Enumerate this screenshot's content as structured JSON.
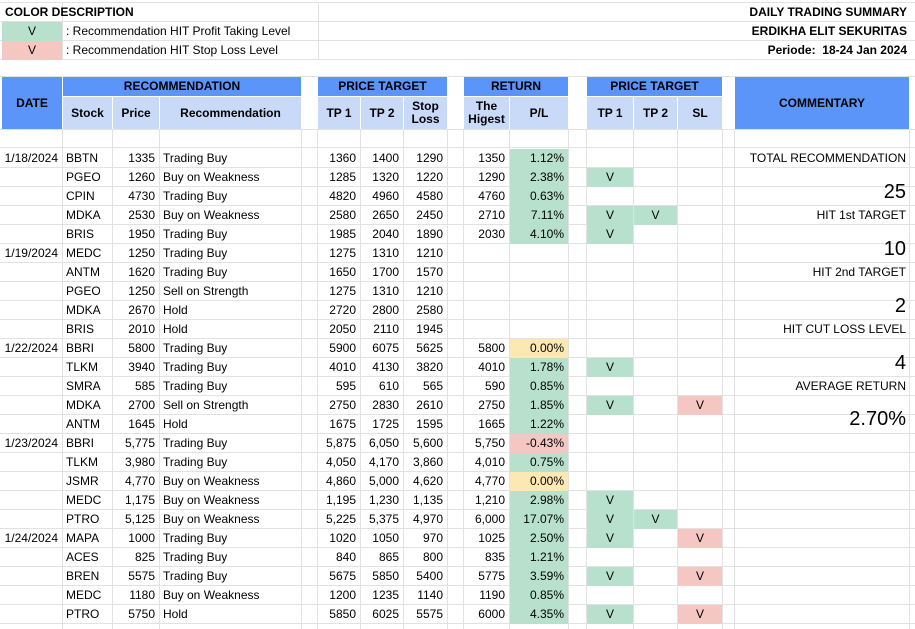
{
  "colors": {
    "header": "#5b95f9",
    "subheader": "#c9daf8",
    "hit_profit": "#b7e1cd",
    "hit_stop": "#f4c7c3",
    "neutral": "#fce8b2"
  },
  "legend": {
    "title": "COLOR DESCRIPTION",
    "profit_mark": "V",
    "profit_text": ": Recommendation HIT Profit Taking Level",
    "stop_mark": "V",
    "stop_text": ": Recommendation HIT Stop Loss Level"
  },
  "report": {
    "title": "DAILY TRADING SUMMARY",
    "company": "ERDIKHA ELIT SEKURITAS",
    "period_label": "Periode:",
    "period_value": "18-24 Jan 2024"
  },
  "headers": {
    "date": "DATE",
    "recommendation": "RECOMMENDATION",
    "stock": "Stock",
    "price": "Price",
    "rec": "Recommendation",
    "price_target": "PRICE TARGET",
    "tp1": "TP 1",
    "tp2": "TP 2",
    "stop_loss": "Stop Loss",
    "return": "RETURN",
    "highest": "The Higest",
    "pl": "P/L",
    "price_target2": "PRICE TARGET",
    "tp1b": "TP 1",
    "tp2b": "TP 2",
    "sl": "SL",
    "commentary": "COMMENTARY"
  },
  "commentary": {
    "total_label": "TOTAL RECOMMENDATION",
    "total_value": "25",
    "hit1_label": "HIT 1st TARGET",
    "hit1_value": "10",
    "hit2_label": "HIT 2nd TARGET",
    "hit2_value": "2",
    "cut_label": "HIT CUT LOSS LEVEL",
    "cut_value": "4",
    "avg_label": "AVERAGE RETURN",
    "avg_value": "2.70%"
  },
  "rows": [
    {
      "date": "1/18/2024",
      "stock": "BBTN",
      "price": "1335",
      "rec": "Trading Buy",
      "tp1": "1360",
      "tp2": "1400",
      "sl": "1290",
      "high": "1350",
      "pl": "1.12%",
      "plc": "green",
      "h1": "",
      "h2": "",
      "hs": ""
    },
    {
      "date": "",
      "stock": "PGEO",
      "price": "1260",
      "rec": "Buy on Weakness",
      "tp1": "1285",
      "tp2": "1320",
      "sl": "1220",
      "high": "1290",
      "pl": "2.38%",
      "plc": "green",
      "h1": "V",
      "h2": "",
      "hs": ""
    },
    {
      "date": "",
      "stock": "CPIN",
      "price": "4730",
      "rec": "Trading Buy",
      "tp1": "4820",
      "tp2": "4960",
      "sl": "4580",
      "high": "4760",
      "pl": "0.63%",
      "plc": "green",
      "h1": "",
      "h2": "",
      "hs": ""
    },
    {
      "date": "",
      "stock": "MDKA",
      "price": "2530",
      "rec": "Buy on Weakness",
      "tp1": "2580",
      "tp2": "2650",
      "sl": "2450",
      "high": "2710",
      "pl": "7.11%",
      "plc": "green",
      "h1": "V",
      "h2": "V",
      "hs": ""
    },
    {
      "date": "",
      "stock": "BRIS",
      "price": "1950",
      "rec": "Trading Buy",
      "tp1": "1985",
      "tp2": "2040",
      "sl": "1890",
      "high": "2030",
      "pl": "4.10%",
      "plc": "green",
      "h1": "V",
      "h2": "",
      "hs": ""
    },
    {
      "date": "1/19/2024",
      "stock": "MEDC",
      "price": "1250",
      "rec": "Trading Buy",
      "tp1": "1275",
      "tp2": "1310",
      "sl": "1210",
      "high": "",
      "pl": "",
      "plc": "",
      "h1": "",
      "h2": "",
      "hs": ""
    },
    {
      "date": "",
      "stock": "ANTM",
      "price": "1620",
      "rec": "Trading Buy",
      "tp1": "1650",
      "tp2": "1700",
      "sl": "1570",
      "high": "",
      "pl": "",
      "plc": "",
      "h1": "",
      "h2": "",
      "hs": ""
    },
    {
      "date": "",
      "stock": "PGEO",
      "price": "1250",
      "rec": "Sell on Strength",
      "tp1": "1275",
      "tp2": "1310",
      "sl": "1210",
      "high": "",
      "pl": "",
      "plc": "",
      "h1": "",
      "h2": "",
      "hs": ""
    },
    {
      "date": "",
      "stock": "MDKA",
      "price": "2670",
      "rec": "Hold",
      "tp1": "2720",
      "tp2": "2800",
      "sl": "2580",
      "high": "",
      "pl": "",
      "plc": "",
      "h1": "",
      "h2": "",
      "hs": ""
    },
    {
      "date": "",
      "stock": "BRIS",
      "price": "2010",
      "rec": "Hold",
      "tp1": "2050",
      "tp2": "2110",
      "sl": "1945",
      "high": "",
      "pl": "",
      "plc": "",
      "h1": "",
      "h2": "",
      "hs": ""
    },
    {
      "date": "1/22/2024",
      "stock": "BBRI",
      "price": "5800",
      "rec": "Trading Buy",
      "tp1": "5900",
      "tp2": "6075",
      "sl": "5625",
      "high": "5800",
      "pl": "0.00%",
      "plc": "yellow",
      "h1": "",
      "h2": "",
      "hs": ""
    },
    {
      "date": "",
      "stock": "TLKM",
      "price": "3940",
      "rec": "Trading Buy",
      "tp1": "4010",
      "tp2": "4130",
      "sl": "3820",
      "high": "4010",
      "pl": "1.78%",
      "plc": "green",
      "h1": "V",
      "h2": "",
      "hs": ""
    },
    {
      "date": "",
      "stock": "SMRA",
      "price": "585",
      "rec": "Trading Buy",
      "tp1": "595",
      "tp2": "610",
      "sl": "565",
      "high": "590",
      "pl": "0.85%",
      "plc": "green",
      "h1": "",
      "h2": "",
      "hs": ""
    },
    {
      "date": "",
      "stock": "MDKA",
      "price": "2700",
      "rec": "Sell on Strength",
      "tp1": "2750",
      "tp2": "2830",
      "sl": "2610",
      "high": "2750",
      "pl": "1.85%",
      "plc": "green",
      "h1": "V",
      "h2": "",
      "hs": "V"
    },
    {
      "date": "",
      "stock": "ANTM",
      "price": "1645",
      "rec": "Hold",
      "tp1": "1675",
      "tp2": "1725",
      "sl": "1595",
      "high": "1665",
      "pl": "1.22%",
      "plc": "green",
      "h1": "",
      "h2": "",
      "hs": ""
    },
    {
      "date": "1/23/2024",
      "stock": "BBRI",
      "price": "5,775",
      "rec": "Trading Buy",
      "tp1": "5,875",
      "tp2": "6,050",
      "sl": "5,600",
      "high": "5,750",
      "pl": "-0.43%",
      "plc": "red",
      "h1": "",
      "h2": "",
      "hs": ""
    },
    {
      "date": "",
      "stock": "TLKM",
      "price": "3,980",
      "rec": "Trading Buy",
      "tp1": "4,050",
      "tp2": "4,170",
      "sl": "3,860",
      "high": "4,010",
      "pl": "0.75%",
      "plc": "green",
      "h1": "",
      "h2": "",
      "hs": ""
    },
    {
      "date": "",
      "stock": "JSMR",
      "price": "4,770",
      "rec": "Buy on Weakness",
      "tp1": "4,860",
      "tp2": "5,000",
      "sl": "4,620",
      "high": "4,770",
      "pl": "0.00%",
      "plc": "yellow",
      "h1": "",
      "h2": "",
      "hs": ""
    },
    {
      "date": "",
      "stock": "MEDC",
      "price": "1,175",
      "rec": "Buy on Weakness",
      "tp1": "1,195",
      "tp2": "1,230",
      "sl": "1,135",
      "high": "1,210",
      "pl": "2.98%",
      "plc": "green",
      "h1": "V",
      "h2": "",
      "hs": ""
    },
    {
      "date": "",
      "stock": "PTRO",
      "price": "5,125",
      "rec": "Buy on Weakness",
      "tp1": "5,225",
      "tp2": "5,375",
      "sl": "4,970",
      "high": "6,000",
      "pl": "17.07%",
      "plc": "green",
      "h1": "V",
      "h2": "V",
      "hs": ""
    },
    {
      "date": "1/24/2024",
      "stock": "MAPA",
      "price": "1000",
      "rec": "Trading Buy",
      "tp1": "1020",
      "tp2": "1050",
      "sl": "970",
      "high": "1025",
      "pl": "2.50%",
      "plc": "green",
      "h1": "V",
      "h2": "",
      "hs": "V"
    },
    {
      "date": "",
      "stock": "ACES",
      "price": "825",
      "rec": "Trading Buy",
      "tp1": "840",
      "tp2": "865",
      "sl": "800",
      "high": "835",
      "pl": "1.21%",
      "plc": "green",
      "h1": "",
      "h2": "",
      "hs": ""
    },
    {
      "date": "",
      "stock": "BREN",
      "price": "5575",
      "rec": "Trading Buy",
      "tp1": "5675",
      "tp2": "5850",
      "sl": "5400",
      "high": "5775",
      "pl": "3.59%",
      "plc": "green",
      "h1": "V",
      "h2": "",
      "hs": "V"
    },
    {
      "date": "",
      "stock": "MEDC",
      "price": "1180",
      "rec": "Buy on Weakness",
      "tp1": "1200",
      "tp2": "1235",
      "sl": "1140",
      "high": "1190",
      "pl": "0.85%",
      "plc": "green",
      "h1": "",
      "h2": "",
      "hs": ""
    },
    {
      "date": "",
      "stock": "PTRO",
      "price": "5750",
      "rec": "Hold",
      "tp1": "5850",
      "tp2": "6025",
      "sl": "5575",
      "high": "6000",
      "pl": "4.35%",
      "plc": "green",
      "h1": "V",
      "h2": "",
      "hs": "V"
    }
  ]
}
